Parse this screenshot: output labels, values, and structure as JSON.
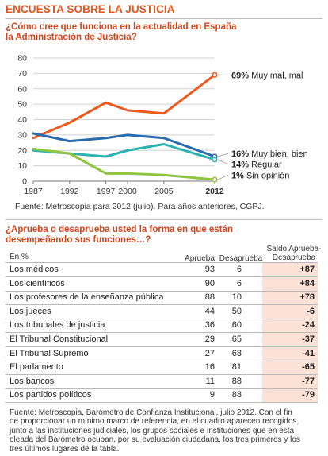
{
  "header": {
    "title": "ENCUESTA SOBRE LA JUSTICIA"
  },
  "chart1": {
    "question_lines": [
      "¿Cómo  cree que funciona en la actualidad en España",
      "la Administración de Justicia?"
    ],
    "source": "Fuente: Metroscopia para 2012 (julio). Para años anteriores, CGPJ."
  },
  "chart_data": [
    {
      "type": "line",
      "title": "¿Cómo  cree que funciona en la actualidad en España la Administración de Justicia?",
      "x": [
        1987,
        1992,
        1997,
        2000,
        2005,
        2012
      ],
      "x_tick_labels": [
        "1987",
        "1992",
        "1997",
        "2000",
        "2005",
        "2012"
      ],
      "y_ticks": [
        0,
        10,
        20,
        30,
        40,
        50,
        60,
        70,
        80
      ],
      "ylim": [
        0,
        80
      ],
      "grid": "horizontal",
      "series": [
        {
          "name": "Muy mal, mal",
          "values": [
            28,
            38,
            51,
            46,
            44,
            69
          ],
          "color": "#ef5a1c",
          "end_pct": "69%",
          "end_text": " Muy mal, mal"
        },
        {
          "name": "Muy bien, bien",
          "values": [
            31,
            26,
            28,
            30,
            28,
            16
          ],
          "color": "#2a6aad",
          "end_pct": "16%",
          "end_text": " Muy bien, bien"
        },
        {
          "name": "Regular",
          "values": [
            20,
            18,
            16,
            20,
            24,
            14
          ],
          "color": "#2bb3b1",
          "end_pct": "14%",
          "end_text": " Regular"
        },
        {
          "name": "Sin opinión",
          "values": [
            21,
            18,
            5,
            5,
            4,
            1
          ],
          "color": "#8fc43f",
          "end_pct": "1%",
          "end_text": " Sin opinión"
        }
      ]
    },
    {
      "type": "table",
      "title": "¿Aprueba o desaprueba usted la forma en que están desempeñando sus funciones…?",
      "unit": "En %",
      "columns": [
        "Aprueba",
        "Desaprueba",
        "Saldo Aprueba-Desaprueba"
      ],
      "rows": [
        {
          "label": "Los médicos",
          "aprueba": "93",
          "desaprueba": "6",
          "saldo": "+87"
        },
        {
          "label": "Los científicos",
          "aprueba": "90",
          "desaprueba": "6",
          "saldo": "+84"
        },
        {
          "label": "Los profesores de la enseñanza pública",
          "aprueba": "88",
          "desaprueba": "10",
          "saldo": "+78"
        },
        {
          "label": "Los jueces",
          "aprueba": "44",
          "desaprueba": "50",
          "saldo": "-6"
        },
        {
          "label": "Los tribunales de justicia",
          "aprueba": "36",
          "desaprueba": "60",
          "saldo": "-24"
        },
        {
          "label": "El Tribunal Constitucional",
          "aprueba": "29",
          "desaprueba": "65",
          "saldo": "-37"
        },
        {
          "label": "El Tribunal Supremo",
          "aprueba": "27",
          "desaprueba": "68",
          "saldo": "-41"
        },
        {
          "label": "El parlamento",
          "aprueba": "16",
          "desaprueba": "81",
          "saldo": "-65"
        },
        {
          "label": "Los bancos",
          "aprueba": "11",
          "desaprueba": "88",
          "saldo": "-77"
        },
        {
          "label": "Los partidos políticos",
          "aprueba": "9",
          "desaprueba": "88",
          "saldo": "-79"
        }
      ]
    }
  ],
  "table": {
    "question_lines": [
      "¿Aprueba o desaprueba usted la forma en que están",
      "desempeñando sus funciones…?"
    ],
    "unit": "En %",
    "col_aprueba": "Aprueba",
    "col_desaprueba": "Desaprueba",
    "col_saldo_1": "Saldo Aprueba-",
    "col_saldo_2": "Desaprueba",
    "saldo_bg": "#fce2d6"
  },
  "footnote": {
    "lines": [
      "Fuente: Metroscopia, Barómetro de Confianza Institucional, julio 2012. Con el fin",
      "de proporcionar un mínimo marco de referencia, en el cuadro aparecen recogidos,",
      "junto a las instituciones judiciales, los grupos sociales e instituciones que en esta",
      "oleada del Barómetro ocupan, por su evaluación ciudadana, los tres primeros y los",
      "tres últimos lugares de la tabla."
    ]
  },
  "colors": {
    "title": "#e0561c",
    "question": "#d3451b",
    "axis": "#555555",
    "grid": "#d0d0d0"
  }
}
